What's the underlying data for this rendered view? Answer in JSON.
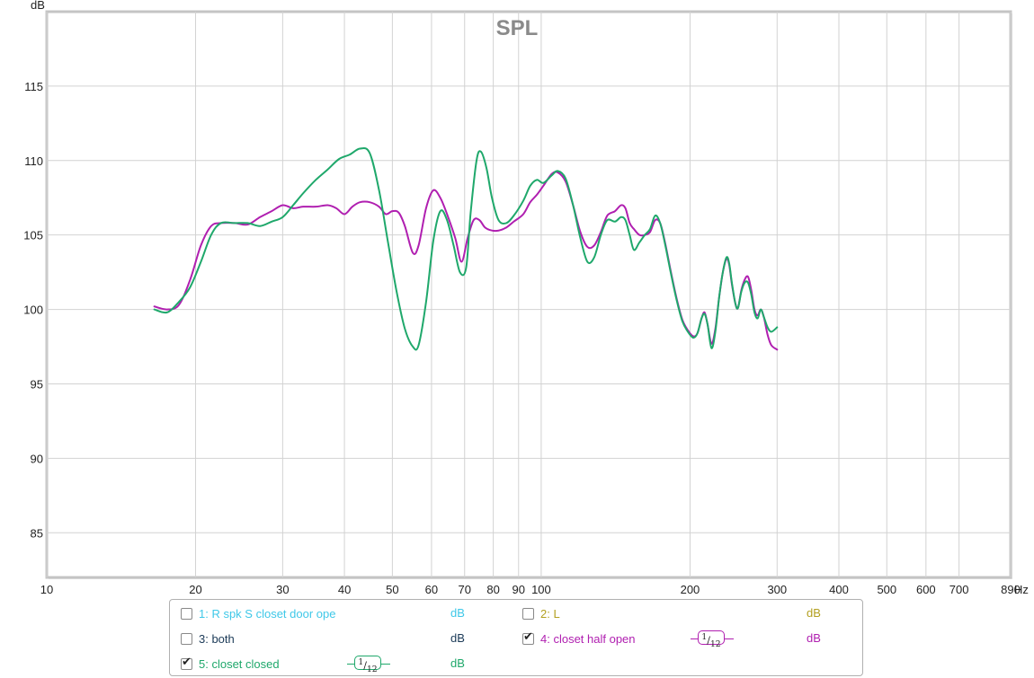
{
  "chart_data": {
    "type": "line",
    "title": "SPL",
    "ylabel": "dB",
    "xlabel": "Hz",
    "x_scale": "log",
    "xlim": [
      10,
      890
    ],
    "ylim": [
      82,
      120
    ],
    "y_ticks": [
      85,
      90,
      95,
      100,
      105,
      110,
      115
    ],
    "x_ticks": [
      10,
      20,
      30,
      40,
      50,
      60,
      70,
      80,
      90,
      100,
      200,
      300,
      400,
      500,
      600,
      700,
      890
    ],
    "x_tick_labels": [
      "10",
      "20",
      "30",
      "40",
      "50",
      "60",
      "70",
      "80",
      "90",
      "100",
      "200",
      "300",
      "400",
      "500",
      "600",
      "700",
      "890"
    ],
    "grid": true,
    "series": [
      {
        "name": "4: closet half open",
        "color": "#b01fb0",
        "points": [
          [
            16.5,
            100.2
          ],
          [
            17.5,
            100.0
          ],
          [
            18.5,
            100.3
          ],
          [
            19.5,
            102.0
          ],
          [
            20.5,
            104.3
          ],
          [
            21.5,
            105.6
          ],
          [
            22.5,
            105.8
          ],
          [
            24,
            105.8
          ],
          [
            25.5,
            105.7
          ],
          [
            27,
            106.2
          ],
          [
            28.5,
            106.6
          ],
          [
            30,
            107.0
          ],
          [
            31.5,
            106.8
          ],
          [
            33,
            106.9
          ],
          [
            35,
            106.9
          ],
          [
            37,
            107.0
          ],
          [
            38.5,
            106.8
          ],
          [
            40,
            106.4
          ],
          [
            41.5,
            106.9
          ],
          [
            43,
            107.2
          ],
          [
            45,
            107.2
          ],
          [
            47,
            106.9
          ],
          [
            48.5,
            106.4
          ],
          [
            50,
            106.6
          ],
          [
            51.5,
            106.5
          ],
          [
            53,
            105.6
          ],
          [
            55,
            103.8
          ],
          [
            56.5,
            104.3
          ],
          [
            58.5,
            106.8
          ],
          [
            60.5,
            108.0
          ],
          [
            62.5,
            107.5
          ],
          [
            64.5,
            106.4
          ],
          [
            67,
            104.8
          ],
          [
            69,
            103.2
          ],
          [
            71,
            104.8
          ],
          [
            73,
            106.0
          ],
          [
            75,
            106.0
          ],
          [
            77,
            105.5
          ],
          [
            79.5,
            105.3
          ],
          [
            82,
            105.3
          ],
          [
            85,
            105.5
          ],
          [
            88,
            105.9
          ],
          [
            92,
            106.4
          ],
          [
            95,
            107.2
          ],
          [
            98,
            107.7
          ],
          [
            101,
            108.3
          ],
          [
            105,
            109.1
          ],
          [
            108,
            109.2
          ],
          [
            112,
            108.6
          ],
          [
            116,
            107.0
          ],
          [
            120,
            105.2
          ],
          [
            124,
            104.2
          ],
          [
            128,
            104.3
          ],
          [
            132,
            105.2
          ],
          [
            136,
            106.3
          ],
          [
            141,
            106.6
          ],
          [
            145,
            107.0
          ],
          [
            148,
            106.8
          ],
          [
            151,
            105.8
          ],
          [
            154,
            105.4
          ],
          [
            158,
            105.0
          ],
          [
            162,
            105.0
          ],
          [
            166,
            105.2
          ],
          [
            170,
            106.0
          ],
          [
            174,
            105.8
          ],
          [
            178,
            104.5
          ],
          [
            183,
            102.5
          ],
          [
            188,
            100.7
          ],
          [
            193,
            99.3
          ],
          [
            198,
            98.6
          ],
          [
            203,
            98.2
          ],
          [
            207,
            98.4
          ],
          [
            211,
            99.4
          ],
          [
            214,
            99.8
          ],
          [
            217,
            99.0
          ],
          [
            221,
            97.7
          ],
          [
            225,
            98.7
          ],
          [
            229,
            100.8
          ],
          [
            233,
            102.5
          ],
          [
            237,
            103.4
          ],
          [
            240,
            103.0
          ],
          [
            243,
            101.7
          ],
          [
            247,
            100.4
          ],
          [
            250,
            100.1
          ],
          [
            254,
            101.3
          ],
          [
            258,
            102.0
          ],
          [
            262,
            102.2
          ],
          [
            266,
            101.3
          ],
          [
            270,
            100.0
          ],
          [
            274,
            99.6
          ],
          [
            278,
            100.0
          ],
          [
            282,
            99.5
          ],
          [
            287,
            98.3
          ],
          [
            292,
            97.6
          ],
          [
            300,
            97.3
          ]
        ]
      },
      {
        "name": "5: closet closed",
        "color": "#1fa86b",
        "points": [
          [
            16.5,
            100.0
          ],
          [
            17.5,
            99.8
          ],
          [
            18.5,
            100.5
          ],
          [
            19.5,
            101.5
          ],
          [
            20.5,
            103.2
          ],
          [
            21.5,
            105.0
          ],
          [
            22.5,
            105.8
          ],
          [
            24,
            105.8
          ],
          [
            25.5,
            105.8
          ],
          [
            27,
            105.6
          ],
          [
            28.5,
            105.9
          ],
          [
            30,
            106.2
          ],
          [
            31.5,
            107.0
          ],
          [
            33,
            107.8
          ],
          [
            35,
            108.7
          ],
          [
            37,
            109.4
          ],
          [
            39,
            110.1
          ],
          [
            41,
            110.4
          ],
          [
            43,
            110.8
          ],
          [
            45,
            110.5
          ],
          [
            47,
            108.0
          ],
          [
            49,
            104.5
          ],
          [
            51,
            101.2
          ],
          [
            53,
            98.7
          ],
          [
            55,
            97.5
          ],
          [
            56.5,
            97.6
          ],
          [
            58.5,
            100.5
          ],
          [
            60.5,
            104.6
          ],
          [
            62.5,
            106.6
          ],
          [
            64.5,
            106.0
          ],
          [
            66.5,
            104.3
          ],
          [
            68.5,
            102.5
          ],
          [
            70.5,
            102.8
          ],
          [
            72,
            106.5
          ],
          [
            74,
            110.0
          ],
          [
            75.5,
            110.6
          ],
          [
            77.5,
            109.5
          ],
          [
            79.5,
            107.5
          ],
          [
            82,
            106.0
          ],
          [
            85,
            105.8
          ],
          [
            88,
            106.3
          ],
          [
            92,
            107.3
          ],
          [
            95,
            108.3
          ],
          [
            98,
            108.7
          ],
          [
            101,
            108.5
          ],
          [
            105,
            109.0
          ],
          [
            108,
            109.3
          ],
          [
            112,
            108.8
          ],
          [
            116,
            107.0
          ],
          [
            120,
            104.8
          ],
          [
            124,
            103.2
          ],
          [
            128,
            103.5
          ],
          [
            132,
            105.0
          ],
          [
            136,
            106.0
          ],
          [
            141,
            105.9
          ],
          [
            145,
            106.2
          ],
          [
            148,
            106.0
          ],
          [
            151,
            105.0
          ],
          [
            154,
            104.0
          ],
          [
            158,
            104.5
          ],
          [
            162,
            105.0
          ],
          [
            166,
            105.4
          ],
          [
            170,
            106.3
          ],
          [
            174,
            105.8
          ],
          [
            178,
            104.4
          ],
          [
            183,
            102.4
          ],
          [
            188,
            100.6
          ],
          [
            193,
            99.2
          ],
          [
            198,
            98.5
          ],
          [
            203,
            98.1
          ],
          [
            207,
            98.4
          ],
          [
            211,
            99.4
          ],
          [
            214,
            99.7
          ],
          [
            217,
            99.0
          ],
          [
            221,
            97.4
          ],
          [
            225,
            98.5
          ],
          [
            229,
            100.8
          ],
          [
            233,
            102.5
          ],
          [
            237,
            103.5
          ],
          [
            240,
            103.1
          ],
          [
            243,
            101.8
          ],
          [
            247,
            100.4
          ],
          [
            250,
            100.1
          ],
          [
            254,
            101.2
          ],
          [
            258,
            101.8
          ],
          [
            262,
            101.8
          ],
          [
            266,
            101.0
          ],
          [
            270,
            99.8
          ],
          [
            274,
            99.4
          ],
          [
            278,
            100.0
          ],
          [
            282,
            99.5
          ],
          [
            287,
            98.8
          ],
          [
            292,
            98.5
          ],
          [
            300,
            98.8
          ]
        ]
      }
    ]
  },
  "legend": {
    "items": [
      {
        "label": "1: R spk S closet door ope",
        "unit": "dB",
        "checked": false,
        "color": "#3fc8e8",
        "smoothing": ""
      },
      {
        "label": "2: L",
        "unit": "dB",
        "checked": false,
        "color": "#b3a021",
        "smoothing": ""
      },
      {
        "label": "3: both",
        "unit": "dB",
        "checked": false,
        "color": "#1b3a57",
        "smoothing": ""
      },
      {
        "label": "4: closet half open",
        "unit": "dB",
        "checked": true,
        "color": "#b01fb0",
        "smoothing": "1/12"
      },
      {
        "label": "5: closet closed",
        "unit": "dB",
        "checked": true,
        "color": "#1fa86b",
        "smoothing": "1/12"
      }
    ],
    "smoothing_numerator": "1",
    "smoothing_denominator": "12"
  }
}
